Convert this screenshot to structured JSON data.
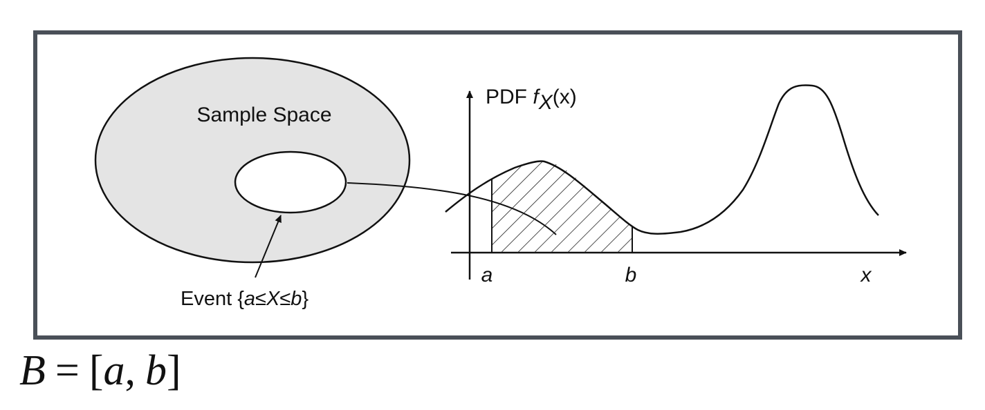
{
  "diagram": {
    "sample_space_label": "Sample Space",
    "event_label": {
      "prefix": "Event {",
      "a": "a",
      "le1": "≤",
      "X": "X",
      "le2": "≤",
      "b": "b",
      "suffix": "}"
    },
    "pdf_label": {
      "prefix": "PDF ",
      "f": "f",
      "sub": "X",
      "arg": "(x)"
    },
    "axis_labels": {
      "a": "a",
      "b": "b",
      "x": "x"
    },
    "colors": {
      "frame": "#4a5058",
      "sample_space_fill": "#e4e4e4",
      "line": "#111111"
    }
  },
  "formula": {
    "lhs": "B",
    "eq": "=",
    "open": "[",
    "a": "a",
    "comma": ",",
    "b": "b",
    "close": "]"
  }
}
